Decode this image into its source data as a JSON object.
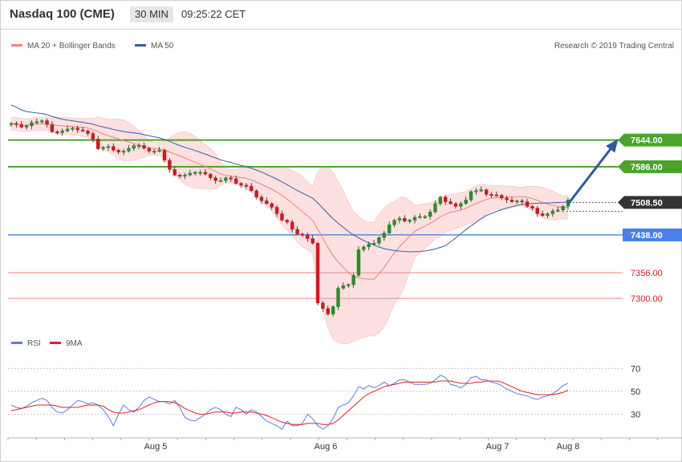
{
  "header": {
    "title": "Nasdaq 100 (CME)",
    "interval": "30 MIN",
    "time": "09:25:22 CET"
  },
  "legend": {
    "ma20_bb": "MA 20 + Bollinger Bands",
    "ma50": "MA 50",
    "rsi": "RSI",
    "ma9": "9MA"
  },
  "copyright": "Research © 2019 Trading Central",
  "colors": {
    "band_fill": "#fde0e0",
    "ma20": "#f08080",
    "ma50": "#3a5fa0",
    "candle_up": "#2e8b2e",
    "candle_down": "#c81e1e",
    "resistance": "#4aa32a",
    "pivot": "#4a7fe8",
    "support": "#f4a0a0",
    "arrow": "#2e5aa0",
    "rsi": "#5b7fe0",
    "rsi_ma": "#e02020"
  },
  "chart_data": [
    {
      "type": "candlestick",
      "title": "Nasdaq 100 (CME)",
      "interval": "30 MIN",
      "x_labels": [
        "Aug 5",
        "Aug 6",
        "Aug 7",
        "Aug 8"
      ],
      "ylim": [
        7220,
        7760
      ],
      "close_path": [
        7680,
        7678,
        7672,
        7675,
        7682,
        7684,
        7686,
        7678,
        7662,
        7660,
        7664,
        7668,
        7670,
        7666,
        7664,
        7658,
        7646,
        7625,
        7628,
        7630,
        7622,
        7618,
        7620,
        7626,
        7632,
        7632,
        7626,
        7620,
        7620,
        7622,
        7600,
        7580,
        7568,
        7566,
        7568,
        7572,
        7574,
        7574,
        7570,
        7562,
        7556,
        7556,
        7562,
        7560,
        7550,
        7546,
        7544,
        7534,
        7520,
        7512,
        7506,
        7498,
        7484,
        7470,
        7466,
        7450,
        7440,
        7438,
        7430,
        7420,
        7290,
        7278,
        7266,
        7282,
        7322,
        7328,
        7330,
        7350,
        7406,
        7412,
        7418,
        7420,
        7432,
        7442,
        7460,
        7470,
        7474,
        7468,
        7470,
        7476,
        7478,
        7478,
        7488,
        7506,
        7520,
        7510,
        7506,
        7500,
        7506,
        7514,
        7532,
        7534,
        7536,
        7526,
        7525,
        7524,
        7518,
        7514,
        7510,
        7512,
        7510,
        7500,
        7496,
        7484,
        7480,
        7484,
        7490,
        7492,
        7500,
        7514
      ],
      "support_resistance": [
        {
          "label": "7644.00",
          "value": 7644,
          "kind": "resistance"
        },
        {
          "label": "7586.00",
          "value": 7586,
          "kind": "resistance"
        },
        {
          "label": "7508.50",
          "value": 7508.5,
          "kind": "last"
        },
        {
          "label": "7438.00",
          "value": 7438,
          "kind": "pivot"
        },
        {
          "label": "7356.00",
          "value": 7356,
          "kind": "support"
        },
        {
          "label": "7300.00",
          "value": 7300,
          "kind": "support"
        }
      ],
      "series": [
        {
          "name": "MA 20 + Bollinger Bands"
        },
        {
          "name": "MA 50"
        }
      ],
      "projection": {
        "from": 7508.5,
        "to": 7644
      }
    },
    {
      "type": "line",
      "y_ticks": [
        30,
        50,
        70
      ],
      "ylim": [
        10,
        80
      ],
      "series": [
        {
          "name": "RSI",
          "values": [
            38,
            36,
            35,
            37,
            40,
            42,
            44,
            42,
            36,
            32,
            31,
            34,
            38,
            42,
            41,
            39,
            40,
            38,
            34,
            28,
            20,
            30,
            38,
            34,
            32,
            36,
            42,
            45,
            43,
            41,
            41,
            39,
            42,
            36,
            27,
            25,
            24,
            27,
            30,
            34,
            36,
            34,
            30,
            28,
            36,
            34,
            30,
            34,
            32,
            28,
            24,
            22,
            20,
            17,
            24,
            20,
            20,
            22,
            30,
            26,
            20,
            17,
            20,
            26,
            36,
            38,
            40,
            46,
            54,
            52,
            55,
            53,
            55,
            58,
            55,
            57,
            60,
            60,
            58,
            56,
            56,
            56,
            57,
            60,
            64,
            62,
            56,
            55,
            53,
            56,
            62,
            63,
            60,
            60,
            58,
            57,
            55,
            52,
            50,
            48,
            47,
            46,
            44,
            43,
            45,
            46,
            48,
            51,
            55,
            57
          ]
        },
        {
          "name": "9MA",
          "values": [
            33,
            34,
            35,
            36,
            37,
            38,
            38,
            38,
            38,
            37,
            36,
            36,
            36,
            36,
            37,
            38,
            38,
            38,
            37,
            34,
            32,
            31,
            31,
            32,
            33,
            34,
            36,
            38,
            40,
            41,
            41,
            41,
            40,
            38,
            35,
            33,
            31,
            30,
            30,
            31,
            32,
            32,
            32,
            31,
            31,
            32,
            32,
            32,
            31,
            30,
            29,
            27,
            25,
            23,
            22,
            21,
            21,
            21,
            22,
            22,
            22,
            21,
            21,
            22,
            25,
            29,
            33,
            37,
            41,
            45,
            48,
            50,
            52,
            54,
            55,
            56,
            57,
            58,
            58,
            58,
            58,
            58,
            58,
            58,
            59,
            59,
            59,
            58,
            57,
            57,
            57,
            58,
            58,
            59,
            59,
            59,
            58,
            56,
            54,
            52,
            50,
            49,
            48,
            47,
            47,
            47,
            47,
            48,
            49,
            51
          ]
        }
      ]
    }
  ]
}
